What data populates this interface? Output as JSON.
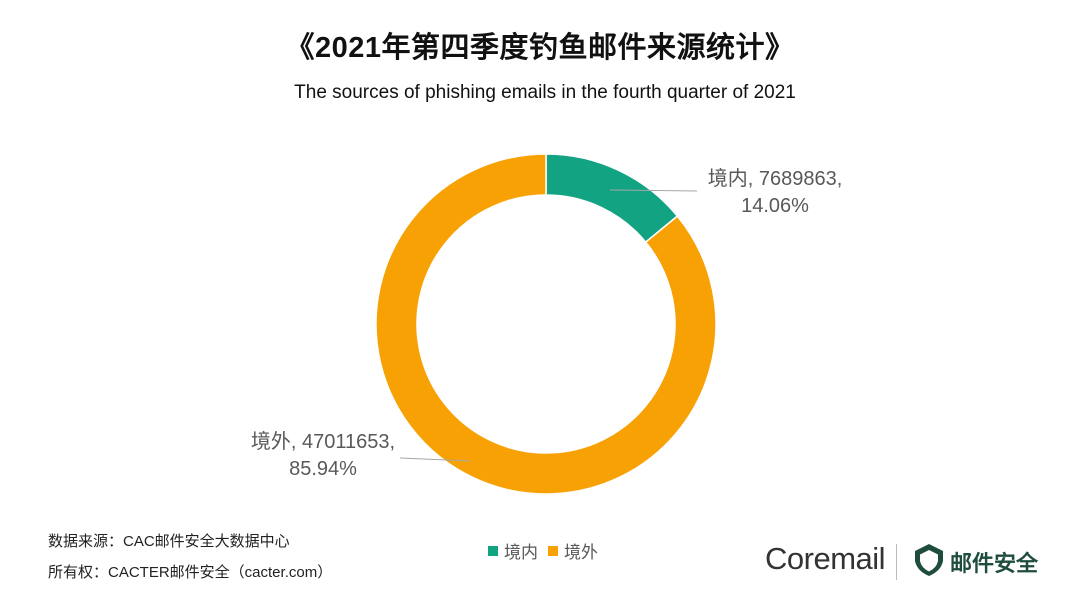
{
  "header": {
    "title": "《2021年第四季度钓鱼邮件来源统计》",
    "subtitle": "The sources of phishing emails in the fourth quarter of 2021"
  },
  "colors": {
    "domestic": "#12A383",
    "foreign": "#F8A104",
    "brand_green": "#1E4D3B"
  },
  "chart_data": {
    "type": "pie",
    "variant": "donut",
    "title": "《2021年第四季度钓鱼邮件来源统计》",
    "subtitle": "The sources of phishing emails in the fourth quarter of 2021",
    "categories": [
      "境内",
      "境外"
    ],
    "values": [
      7689863,
      47011653
    ],
    "percentages": [
      14.06,
      85.94
    ],
    "colors": [
      "#12A383",
      "#F8A104"
    ],
    "data_labels": [
      "境内, 7689863, 14.06%",
      "境外, 47011653, 85.94%"
    ],
    "legend_position": "bottom"
  },
  "labels": {
    "domestic_line1": "境内, 7689863,",
    "domestic_line2": "14.06%",
    "foreign_line1": "境外, 47011653,",
    "foreign_line2": "85.94%"
  },
  "legend": {
    "items": [
      {
        "label": "境内",
        "color": "#12A383"
      },
      {
        "label": "境外",
        "color": "#F8A104"
      }
    ]
  },
  "footer": {
    "source": "数据来源：CAC邮件安全大数据中心",
    "copyright": "所有权：CACTER邮件安全（cacter.com）"
  },
  "branding": {
    "logo_text": "Coremail",
    "product_text": "邮件安全"
  }
}
